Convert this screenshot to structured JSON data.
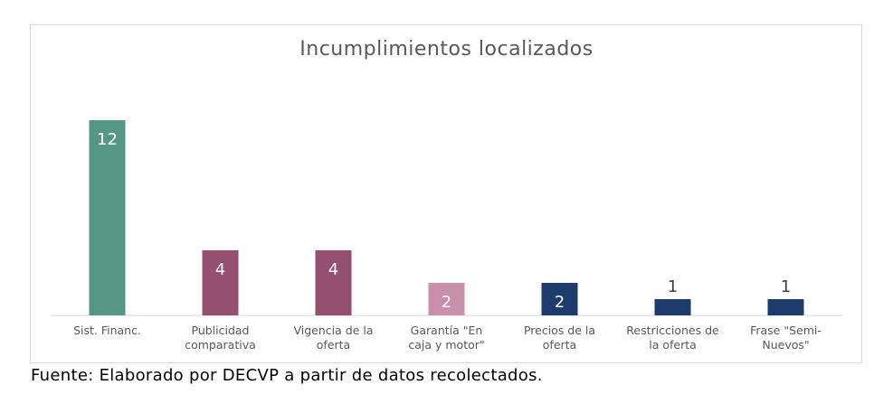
{
  "chart_data": {
    "type": "bar",
    "title": "Incumplimientos localizados",
    "categories": [
      "Sist. Financ.",
      "Publicidad comparativa",
      "Vigencia de la oferta",
      "Garantía \"En caja y motor\"",
      "Precios de la oferta",
      "Restricciones de la oferta",
      "Frase \"Semi-Nuevos\""
    ],
    "category_lines": [
      [
        "Sist. Financ."
      ],
      [
        "Publicidad",
        "comparativa"
      ],
      [
        "Vigencia de la",
        "oferta"
      ],
      [
        "Garantía \"En",
        "caja y motor\""
      ],
      [
        "Precios de la",
        "oferta"
      ],
      [
        "Restricciones de",
        "la oferta"
      ],
      [
        "Frase \"Semi-",
        "Nuevos\""
      ]
    ],
    "values": [
      12,
      4,
      4,
      2,
      2,
      1,
      1
    ],
    "colors": [
      "#559684",
      "#944f71",
      "#944f71",
      "#c98fab",
      "#1d3c6c",
      "#1d3c6c",
      "#1d3c6c"
    ],
    "data_labels": [
      "12",
      "4",
      "4",
      "2",
      "2",
      "1",
      "1"
    ],
    "xlabel": "",
    "ylabel": "",
    "ylim": [
      0,
      12
    ],
    "grid": false,
    "legend": "none"
  },
  "source_note": "Fuente: Elaborado por DECVP a partir de datos recolectados."
}
